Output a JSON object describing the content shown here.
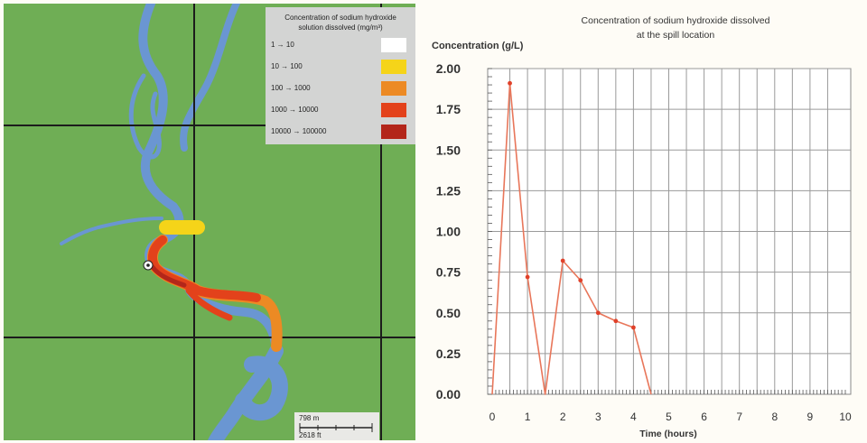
{
  "map": {
    "legend": {
      "title_line1": "Concentration of sodium hydroxide",
      "title_line2": "solution dissolved (mg/m³)",
      "items": [
        {
          "label": "1 → 10",
          "color": "#ffffff"
        },
        {
          "label": "10 → 100",
          "color": "#f5d419"
        },
        {
          "label": "100 → 1000",
          "color": "#ec8a24"
        },
        {
          "label": "1000 → 10000",
          "color": "#e3421b"
        },
        {
          "label": "10000 → 100000",
          "color": "#b3261a"
        }
      ]
    },
    "scale": {
      "metric": "798 m",
      "imperial": "2618 ft"
    },
    "colors": {
      "land": "#6fae55",
      "river": "#6a96d2",
      "grid": "#1c1c1c"
    }
  },
  "chart_data": {
    "type": "line",
    "title": "Concentration of sodium hydroxide dissolved",
    "subtitle": "at the spill location",
    "xlabel": "Time (hours)",
    "ylabel": "Concentration (g/L)",
    "xlim": [
      0,
      10
    ],
    "ylim": [
      0,
      2
    ],
    "xticks": [
      "0",
      "1",
      "2",
      "3",
      "4",
      "5",
      "6",
      "7",
      "8",
      "9",
      "10"
    ],
    "yticks": [
      "0.00",
      "0.25",
      "0.50",
      "0.75",
      "1.00",
      "1.25",
      "1.50",
      "1.75",
      "2.00"
    ],
    "grid": true,
    "series": [
      {
        "color": "#e8765a",
        "x": [
          0,
          0.5,
          1,
          1.5,
          2,
          2.5,
          3,
          3.5,
          4,
          4.5
        ],
        "y": [
          0,
          1.91,
          0.72,
          0,
          0.82,
          0.7,
          0.5,
          0.45,
          0.41,
          0
        ]
      }
    ]
  }
}
